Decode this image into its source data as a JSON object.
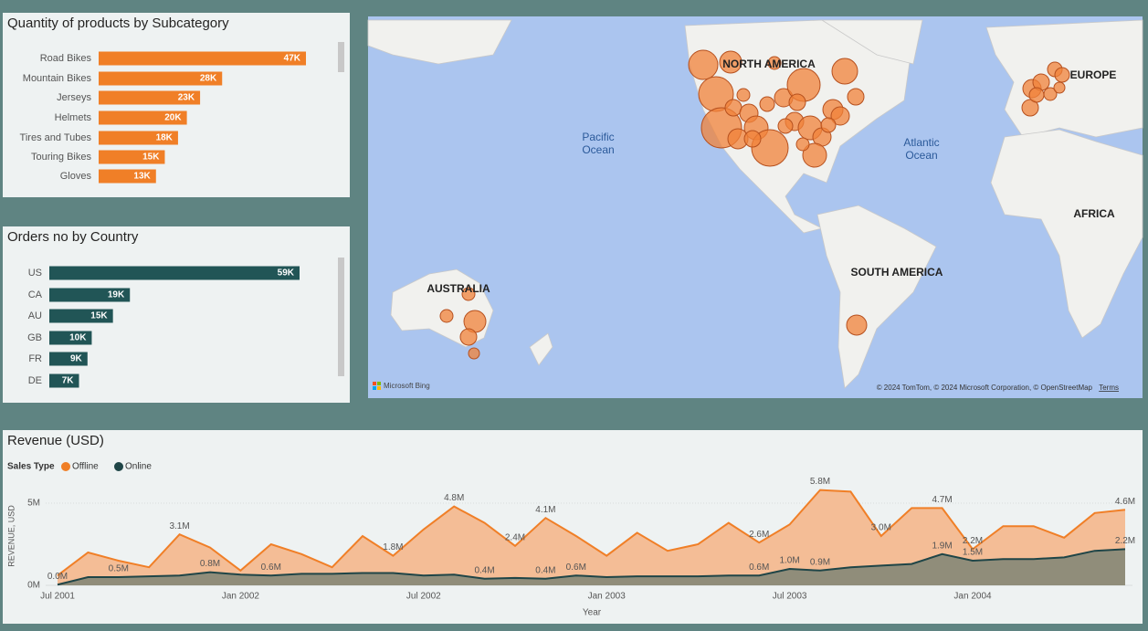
{
  "chart_data": [
    {
      "type": "hbar",
      "title": "Quantity of products by Subcategory",
      "color": "#f07f27",
      "categories": [
        "Road Bikes",
        "Mountain Bikes",
        "Jerseys",
        "Helmets",
        "Tires and Tubes",
        "Touring Bikes",
        "Gloves"
      ],
      "values": [
        47000,
        28000,
        23000,
        20000,
        18000,
        15000,
        13000
      ],
      "value_labels": [
        "47K",
        "28K",
        "23K",
        "20K",
        "18K",
        "15K",
        "13K"
      ]
    },
    {
      "type": "hbar",
      "title": "Orders no by Country",
      "color": "#215556",
      "categories": [
        "US",
        "CA",
        "AU",
        "GB",
        "FR",
        "DE"
      ],
      "values": [
        59000,
        19000,
        15000,
        10000,
        9000,
        7000
      ],
      "value_labels": [
        "59K",
        "19K",
        "15K",
        "10K",
        "9K",
        "7K"
      ]
    },
    {
      "type": "area",
      "title": "Revenue (USD)",
      "legend_title": "Sales Type",
      "x_label": "Year",
      "y_label": "REVENUE, USD",
      "x": [
        "2001-07",
        "2001-08",
        "2001-09",
        "2001-10",
        "2001-11",
        "2001-12",
        "2002-01",
        "2002-02",
        "2002-03",
        "2002-04",
        "2002-05",
        "2002-06",
        "2002-07",
        "2002-08",
        "2002-09",
        "2002-10",
        "2002-11",
        "2002-12",
        "2003-01",
        "2003-02",
        "2003-03",
        "2003-04",
        "2003-05",
        "2003-06",
        "2003-07",
        "2003-08",
        "2003-09",
        "2003-10",
        "2003-11",
        "2003-12",
        "2004-01",
        "2004-02",
        "2004-03",
        "2004-04",
        "2004-05",
        "2004-06"
      ],
      "xticks": [
        {
          "value": "2001-07",
          "label": "Jul 2001"
        },
        {
          "value": "2002-01",
          "label": "Jan 2002"
        },
        {
          "value": "2002-07",
          "label": "Jul 2002"
        },
        {
          "value": "2003-01",
          "label": "Jan 2003"
        },
        {
          "value": "2003-07",
          "label": "Jul 2003"
        },
        {
          "value": "2004-01",
          "label": "Jan 2004"
        }
      ],
      "ylim": [
        0,
        6000000
      ],
      "yticks": [
        {
          "value": 0,
          "label": "0M"
        },
        {
          "value": 5000000,
          "label": "5M"
        }
      ],
      "series": [
        {
          "name": "Offline",
          "color": "#f07f27",
          "fill": "#f4bd96",
          "values": [
            600000,
            2000000,
            1500000,
            1100000,
            3100000,
            2300000,
            900000,
            2500000,
            1900000,
            1100000,
            3000000,
            1800000,
            3400000,
            4800000,
            3800000,
            2400000,
            4100000,
            3000000,
            1800000,
            3200000,
            2100000,
            2500000,
            3800000,
            2600000,
            3700000,
            5800000,
            5700000,
            3000000,
            4700000,
            4700000,
            2200000,
            3600000,
            3600000,
            2900000,
            4400000,
            4600000
          ],
          "value_labels": [
            null,
            null,
            null,
            null,
            "3.1M",
            null,
            null,
            null,
            null,
            null,
            null,
            "1.8M",
            null,
            "4.8M",
            null,
            "2.4M",
            "4.1M",
            null,
            null,
            null,
            null,
            null,
            null,
            "2.6M",
            null,
            "5.8M",
            null,
            "3.0M",
            null,
            "4.7M",
            "2.2M",
            null,
            null,
            null,
            null,
            "4.6M"
          ]
        },
        {
          "name": "Online",
          "color": "#1f4547",
          "fill": "#8a8a78",
          "values": [
            40000,
            500000,
            500000,
            550000,
            600000,
            800000,
            650000,
            600000,
            700000,
            700000,
            750000,
            750000,
            600000,
            650000,
            400000,
            450000,
            400000,
            600000,
            500000,
            550000,
            550000,
            550000,
            600000,
            600000,
            1000000,
            900000,
            1100000,
            1200000,
            1300000,
            1900000,
            1500000,
            1600000,
            1600000,
            1700000,
            2100000,
            2200000
          ],
          "value_labels": [
            "0.0M",
            null,
            "0.5M",
            null,
            null,
            "0.8M",
            null,
            "0.6M",
            null,
            null,
            null,
            null,
            null,
            null,
            "0.4M",
            null,
            "0.4M",
            "0.6M",
            null,
            null,
            null,
            null,
            null,
            "0.6M",
            "1.0M",
            "0.9M",
            null,
            null,
            null,
            "1.9M",
            "1.5M",
            null,
            null,
            null,
            null,
            "2.2M"
          ]
        }
      ]
    }
  ],
  "map": {
    "labels": [
      "NORTH AMERICA",
      "EUROPE",
      "AFRICA",
      "SOUTH AMERICA",
      "AUSTRALIA"
    ],
    "oceans": [
      [
        "Pacific",
        "Ocean"
      ],
      [
        "Atlantic",
        "Ocean"
      ]
    ],
    "logo": "Microsoft Bing",
    "attribution": "© 2024 TomTom, © 2024 Microsoft Corporation, © OpenStreetMap",
    "terms": "Terms"
  }
}
